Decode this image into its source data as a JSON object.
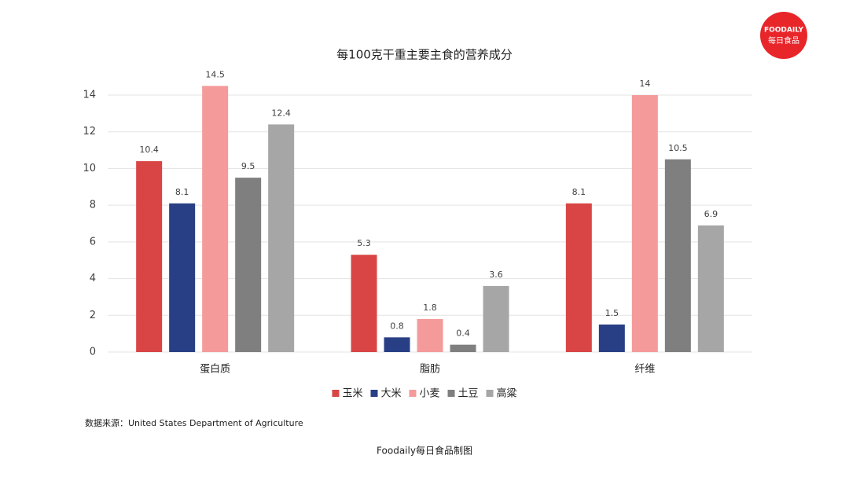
{
  "chart_data": {
    "type": "bar",
    "title": "每100克干重主要主食的营养成分",
    "categories": [
      "蛋白质",
      "脂肪",
      "纤维"
    ],
    "series": [
      {
        "name": "玉米",
        "color": "#d94545",
        "values": [
          10.4,
          5.3,
          8.1
        ]
      },
      {
        "name": "大米",
        "color": "#283f85",
        "values": [
          8.1,
          0.8,
          1.5
        ]
      },
      {
        "name": "小麦",
        "color": "#f59a9a",
        "values": [
          14.5,
          1.8,
          14
        ]
      },
      {
        "name": "土豆",
        "color": "#7f7f7f",
        "values": [
          9.5,
          0.4,
          10.5
        ]
      },
      {
        "name": "高粱",
        "color": "#a6a6a6",
        "values": [
          12.4,
          3.6,
          6.9
        ]
      }
    ],
    "ylim": [
      0,
      14
    ],
    "yticks": [
      0,
      2,
      4,
      6,
      8,
      10,
      12,
      14
    ],
    "grid": true,
    "legend": "bottom",
    "source": "数据来源：United States Department of Agriculture",
    "credit": "Foodaily每日食品制图"
  },
  "logo": {
    "brand": "FOODAILY",
    "name": "每日食品"
  }
}
